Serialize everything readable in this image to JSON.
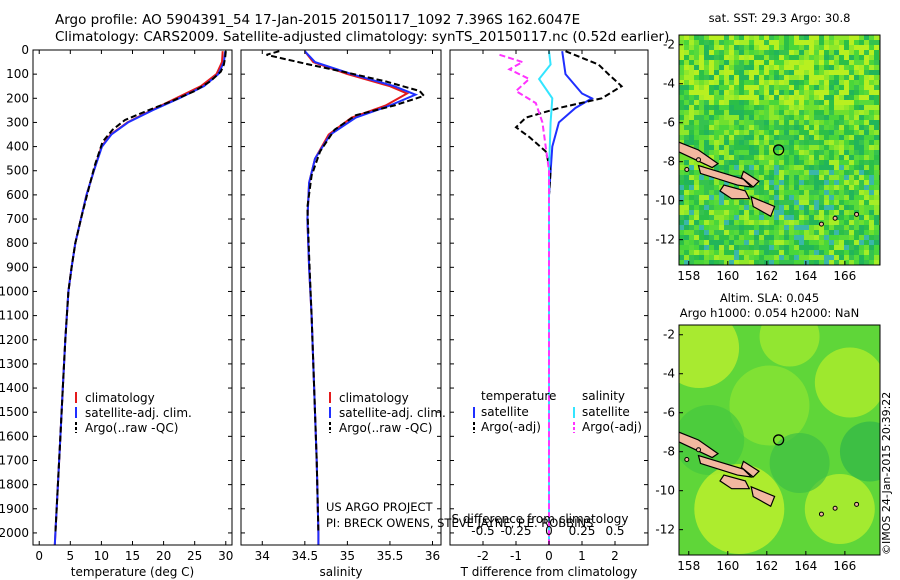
{
  "header": {
    "line1": "Argo profile: AO 5904391_54 17-Jan-2015 20150117_1092 7.396S 162.6047E",
    "line2": "Climatology: CARS2009. Satellite-adjusted climatology: synTS_20150117.nc (0.52d earlier)"
  },
  "stamp": "©IMOS 24-Jan-2015 20:39:22",
  "colors": {
    "climatology": "#e41a1c",
    "satellite": "#1f2fff",
    "argo": "#000000",
    "sat_salinity": "#33e5ff",
    "argo_adj_salinity": "#ff33ff"
  },
  "chart_data": [
    {
      "type": "line",
      "panel": "temperature",
      "xlabel": "temperature (deg C)",
      "ylabel": "",
      "xlim": [
        -1,
        31
      ],
      "ylim": [
        2050,
        0
      ],
      "xticks": [
        0,
        5,
        10,
        15,
        20,
        25,
        30
      ],
      "xtick_labels": [
        "0",
        "5",
        "10",
        "15",
        "20",
        "25",
        "30"
      ],
      "yticks": [
        0,
        100,
        200,
        300,
        400,
        500,
        600,
        700,
        800,
        900,
        1000,
        1100,
        1200,
        1300,
        1400,
        1500,
        1600,
        1700,
        1800,
        1900,
        2000
      ],
      "ytick_labels": [
        "0",
        "100",
        "200",
        "300",
        "400",
        "500",
        "600",
        "700",
        "800",
        "900",
        "1000",
        "1100",
        "1200",
        "1300",
        "1400",
        "1500",
        "1600",
        "1700",
        "1800",
        "1900",
        "2000"
      ],
      "legend": {
        "placement": "lower-center",
        "entries": [
          "climatology",
          "satellite-adj. clim.",
          "Argo(..raw -QC)"
        ]
      },
      "series": [
        {
          "name": "climatology",
          "style": "climatology",
          "points": [
            [
              29.5,
              5
            ],
            [
              29.4,
              50
            ],
            [
              28.5,
              100
            ],
            [
              26,
              150
            ],
            [
              22,
              200
            ],
            [
              18,
              250
            ],
            [
              14.2,
              300
            ],
            [
              11.5,
              350
            ],
            [
              10,
              400
            ],
            [
              8.8,
              500
            ],
            [
              7.6,
              600
            ],
            [
              6.7,
              700
            ],
            [
              5.8,
              800
            ],
            [
              5.2,
              900
            ],
            [
              4.7,
              1000
            ],
            [
              4.2,
              1200
            ],
            [
              3.8,
              1400
            ],
            [
              3.4,
              1600
            ],
            [
              3.0,
              1800
            ],
            [
              2.6,
              2000
            ],
            [
              2.5,
              2050
            ]
          ]
        },
        {
          "name": "satellite-adj. clim.",
          "style": "satellite",
          "points": [
            [
              29.9,
              5
            ],
            [
              29.7,
              50
            ],
            [
              28.8,
              100
            ],
            [
              26.5,
              150
            ],
            [
              22.5,
              200
            ],
            [
              18.2,
              250
            ],
            [
              14.3,
              300
            ],
            [
              11.6,
              350
            ],
            [
              10.1,
              400
            ],
            [
              8.8,
              500
            ],
            [
              7.6,
              600
            ],
            [
              6.7,
              700
            ],
            [
              5.8,
              800
            ],
            [
              5.2,
              900
            ],
            [
              4.7,
              1000
            ],
            [
              4.2,
              1200
            ],
            [
              3.8,
              1400
            ],
            [
              3.4,
              1600
            ],
            [
              3.0,
              1800
            ],
            [
              2.6,
              2000
            ],
            [
              2.5,
              2050
            ]
          ]
        },
        {
          "name": "Argo(..raw -QC)",
          "style": "argo",
          "points": [
            [
              30.0,
              5
            ],
            [
              29.9,
              30
            ],
            [
              29.7,
              60
            ],
            [
              29.2,
              90
            ],
            [
              27.5,
              130
            ],
            [
              25,
              170
            ],
            [
              21.5,
              210
            ],
            [
              17.5,
              250
            ],
            [
              13.8,
              290
            ],
            [
              11.8,
              330
            ],
            [
              10.2,
              380
            ],
            [
              8.9,
              480
            ],
            [
              7.7,
              600
            ],
            [
              6.7,
              700
            ],
            [
              5.8,
              800
            ],
            [
              5.2,
              900
            ],
            [
              4.7,
              1000
            ],
            [
              4.2,
              1200
            ],
            [
              3.8,
              1400
            ],
            [
              3.4,
              1600
            ],
            [
              3.0,
              1800
            ],
            [
              2.6,
              2000
            ]
          ]
        }
      ]
    },
    {
      "type": "line",
      "panel": "salinity",
      "xlabel": "salinity",
      "ylabel": "",
      "xlim": [
        33.75,
        36.1
      ],
      "ylim": [
        2050,
        0
      ],
      "xticks": [
        34,
        34.5,
        35,
        35.5,
        36
      ],
      "xtick_labels": [
        "34",
        "34.5",
        "35",
        "35.5",
        "36"
      ],
      "legend": {
        "placement": "lower-center",
        "entries": [
          "climatology",
          "satellite-adj. clim.",
          "Argo(..raw -QC)"
        ]
      },
      "annotation": [
        "US ARGO PROJECT",
        "PI: BRECK OWENS, STEVE JAYNE, P.E. ROBBINS"
      ],
      "series": [
        {
          "name": "climatology",
          "style": "climatology",
          "points": [
            [
              34.5,
              5
            ],
            [
              34.6,
              50
            ],
            [
              35.0,
              100
            ],
            [
              35.5,
              150
            ],
            [
              35.7,
              180
            ],
            [
              35.45,
              230
            ],
            [
              35.05,
              280
            ],
            [
              34.78,
              350
            ],
            [
              34.62,
              450
            ],
            [
              34.55,
              550
            ],
            [
              34.53,
              700
            ],
            [
              34.55,
              900
            ],
            [
              34.58,
              1100
            ],
            [
              34.6,
              1300
            ],
            [
              34.62,
              1500
            ],
            [
              34.64,
              1700
            ],
            [
              34.66,
              2000
            ],
            [
              34.66,
              2050
            ]
          ]
        },
        {
          "name": "satellite-adj. clim.",
          "style": "satellite",
          "points": [
            [
              34.5,
              5
            ],
            [
              34.62,
              50
            ],
            [
              35.05,
              100
            ],
            [
              35.55,
              150
            ],
            [
              35.8,
              185
            ],
            [
              35.5,
              230
            ],
            [
              35.1,
              280
            ],
            [
              34.8,
              350
            ],
            [
              34.62,
              450
            ],
            [
              34.55,
              550
            ],
            [
              34.53,
              700
            ],
            [
              34.55,
              900
            ],
            [
              34.58,
              1100
            ],
            [
              34.6,
              1300
            ],
            [
              34.62,
              1500
            ],
            [
              34.64,
              1700
            ],
            [
              34.66,
              2000
            ],
            [
              34.66,
              2050
            ]
          ]
        },
        {
          "name": "Argo(..raw -QC)",
          "style": "argo",
          "points": [
            [
              34.2,
              5
            ],
            [
              34.05,
              20
            ],
            [
              34.3,
              40
            ],
            [
              34.55,
              60
            ],
            [
              34.95,
              90
            ],
            [
              35.45,
              130
            ],
            [
              35.85,
              170
            ],
            [
              35.9,
              190
            ],
            [
              35.55,
              230
            ],
            [
              35.1,
              270
            ],
            [
              34.85,
              330
            ],
            [
              34.68,
              420
            ],
            [
              34.58,
              520
            ],
            [
              34.53,
              650
            ],
            [
              34.55,
              850
            ],
            [
              34.58,
              1100
            ],
            [
              34.6,
              1300
            ],
            [
              34.62,
              1500
            ],
            [
              34.64,
              1700
            ],
            [
              34.66,
              2000
            ]
          ]
        }
      ]
    },
    {
      "type": "line",
      "panel": "difference",
      "xlabel": "T difference from climatology",
      "secondary_xlabel": "S difference from climatology",
      "xlim": [
        -3,
        3
      ],
      "ylim": [
        2050,
        0
      ],
      "xticks": [
        -2,
        -1,
        0,
        1,
        2
      ],
      "xtick_labels": [
        "-2",
        "-1",
        "0",
        "1",
        "2"
      ],
      "secondary_xticks": [
        -0.5,
        -0.25,
        0,
        0.25,
        0.5
      ],
      "secondary_xtick_labels": [
        "-0.5",
        "-0.25",
        "0",
        "0.25",
        "0.5"
      ],
      "legend": {
        "placement": "lower-center",
        "temperature_header": "temperature",
        "temperature_entries": [
          "satellite",
          "Argo(-adj)"
        ],
        "salinity_header": "salinity",
        "salinity_entries": [
          "satellite",
          "Argo(-adj)"
        ]
      },
      "series": [
        {
          "name": "T satellite",
          "style": "satellite",
          "points": [
            [
              0.4,
              5
            ],
            [
              0.5,
              100
            ],
            [
              1.0,
              180
            ],
            [
              1.3,
              200
            ],
            [
              0.8,
              240
            ],
            [
              0.3,
              300
            ],
            [
              0.1,
              400
            ],
            [
              0,
              600
            ],
            [
              0,
              2050
            ]
          ]
        },
        {
          "name": "T Argo(-adj)",
          "style": "argo",
          "points": [
            [
              0.5,
              5
            ],
            [
              1.5,
              60
            ],
            [
              1.8,
              100
            ],
            [
              2.2,
              150
            ],
            [
              1.6,
              200
            ],
            [
              0.3,
              240
            ],
            [
              -0.7,
              280
            ],
            [
              -1.0,
              320
            ],
            [
              -0.6,
              360
            ],
            [
              -0.1,
              420
            ],
            [
              0.05,
              500
            ],
            [
              0,
              600
            ],
            [
              0,
              2050
            ]
          ]
        },
        {
          "name": "S satellite",
          "style": "sat_salinity",
          "points": [
            [
              0,
              5
            ],
            [
              0.05,
              60
            ],
            [
              -0.3,
              120
            ],
            [
              0.1,
              200
            ],
            [
              0.05,
              300
            ],
            [
              0,
              500
            ],
            [
              0,
              2050
            ]
          ]
        },
        {
          "name": "S Argo(-adj)",
          "style": "argo_adj_salinity",
          "points": [
            [
              -1.5,
              20
            ],
            [
              -0.8,
              50
            ],
            [
              -1.2,
              80
            ],
            [
              -0.6,
              120
            ],
            [
              -1.0,
              170
            ],
            [
              -0.4,
              220
            ],
            [
              -0.2,
              300
            ],
            [
              0,
              500
            ],
            [
              0,
              2050
            ]
          ]
        }
      ]
    },
    {
      "type": "heatmap",
      "panel": "sst-map",
      "title": "sat. SST: 29.3 Argo: 30.8",
      "xlim": [
        157.5,
        167.8
      ],
      "ylim": [
        -13.3,
        -1.5
      ],
      "xticks": [
        158,
        160,
        162,
        164,
        166
      ],
      "xtick_labels": [
        "158",
        "160",
        "162",
        "164",
        "166"
      ],
      "yticks": [
        -2,
        -4,
        -6,
        -8,
        -10,
        -12
      ],
      "ytick_labels": [
        "-2",
        "-4",
        "-6",
        "-8",
        "-10",
        "-12"
      ],
      "float_position": [
        162.6047,
        -7.396
      ]
    },
    {
      "type": "heatmap",
      "panel": "sla-map",
      "title": "Altim. SLA: 0.045",
      "subtitle": "Argo h1000: 0.054 h2000: NaN",
      "xlim": [
        157.5,
        167.8
      ],
      "ylim": [
        -13.3,
        -1.5
      ],
      "xticks": [
        158,
        160,
        162,
        164,
        166
      ],
      "xtick_labels": [
        "158",
        "160",
        "162",
        "164",
        "166"
      ],
      "yticks": [
        -2,
        -4,
        -6,
        -8,
        -10,
        -12
      ],
      "ytick_labels": [
        "-2",
        "-4",
        "-6",
        "-8",
        "-10",
        "-12"
      ],
      "float_position": [
        162.6047,
        -7.396
      ]
    }
  ]
}
